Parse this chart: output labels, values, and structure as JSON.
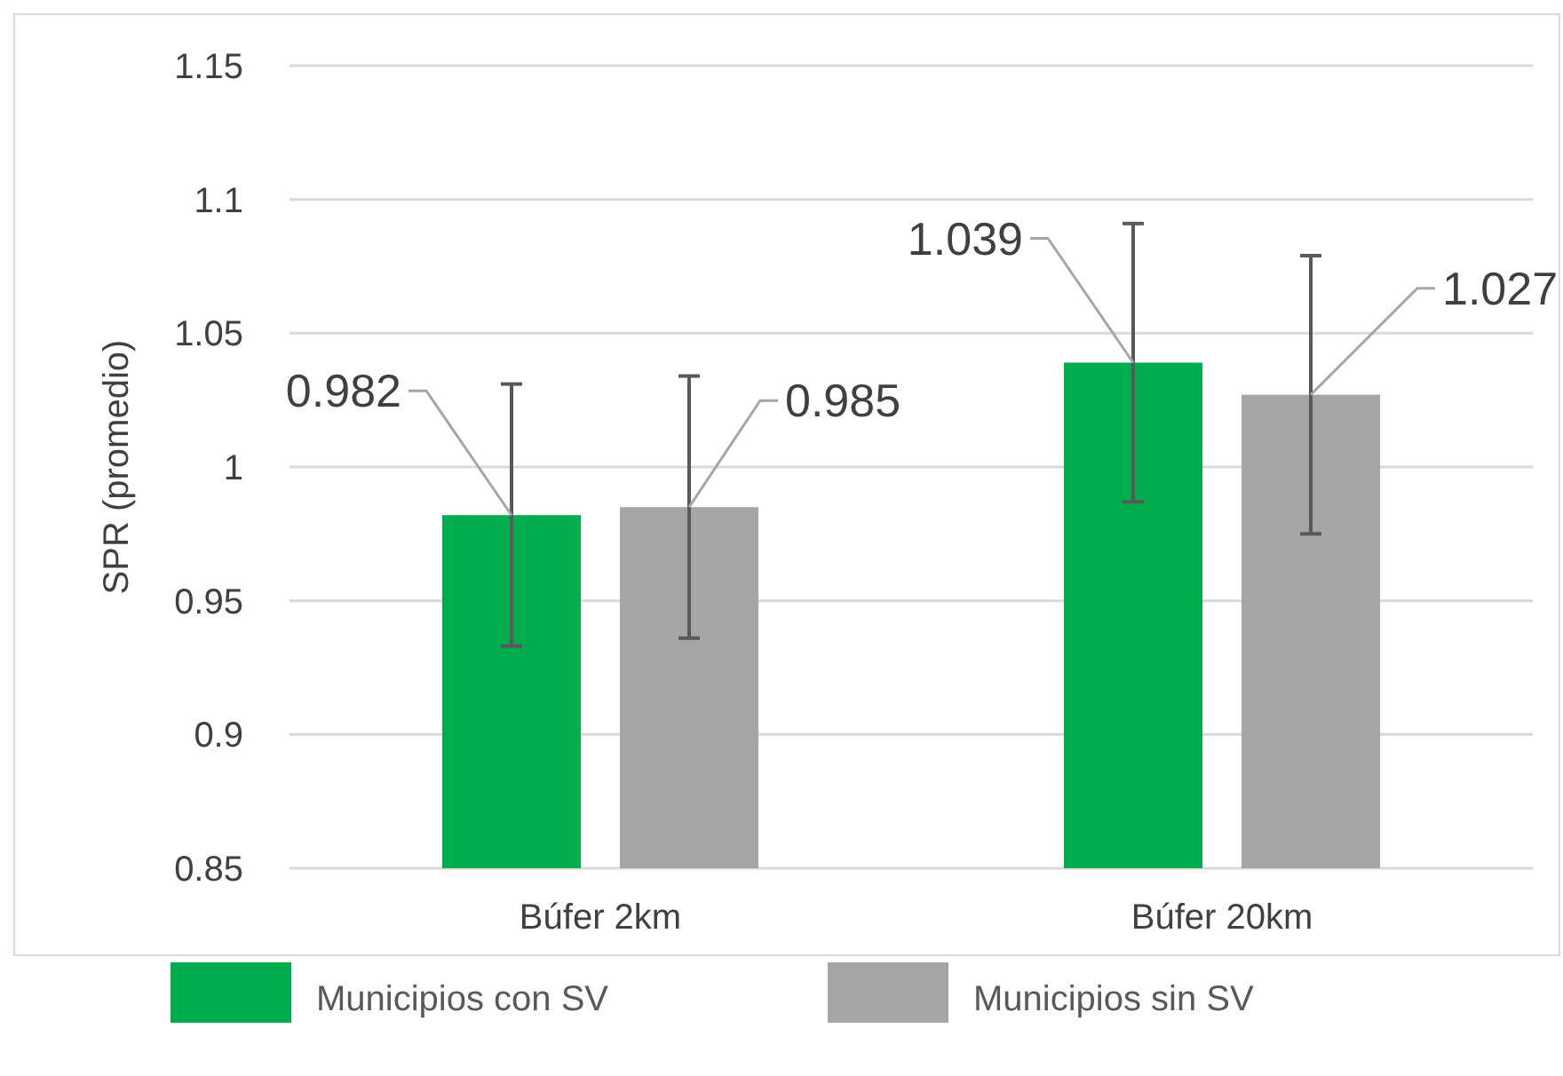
{
  "chart_data": {
    "type": "bar",
    "ylabel": "SPR (promedio)",
    "categories": [
      "Búfer 2km",
      "Búfer 20km"
    ],
    "series": [
      {
        "name": "Municipios con SV",
        "color": "#00ad4e",
        "values": [
          0.982,
          1.039
        ],
        "errors": [
          0.049,
          0.052
        ]
      },
      {
        "name": "Municipios sin SV",
        "color": "#a5a5a5",
        "values": [
          0.985,
          1.027
        ],
        "errors": [
          0.049,
          0.052
        ]
      }
    ],
    "ylim": [
      0.85,
      1.15
    ],
    "yticks": [
      0.85,
      0.9,
      0.95,
      1,
      1.05,
      1.1,
      1.15
    ],
    "grid": "y",
    "data_labels": true,
    "legend": "bottom"
  }
}
